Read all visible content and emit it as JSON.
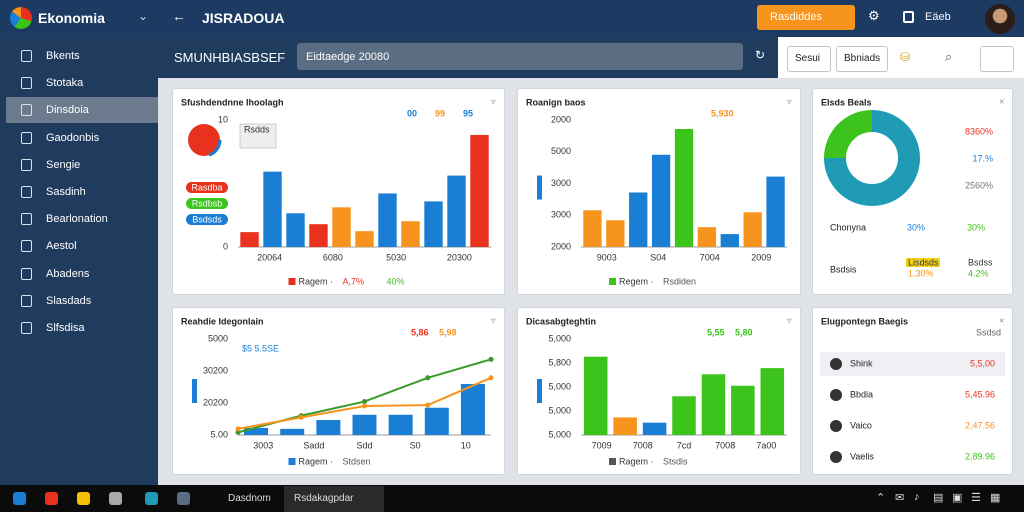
{
  "topbar": {
    "brand": "Ekonomia",
    "title": "JISRADOUA",
    "button": "Rasdiddes",
    "user": "Eäeb"
  },
  "sidebar": {
    "selected": 2,
    "items": [
      "Bkents",
      "Stotaka",
      "Dinsdoia",
      "Gaodonbis",
      "Sengie",
      "Sasdinh",
      "Bearlonation",
      "Aestol",
      "Abadens",
      "Slasdads",
      "Slfsdisa"
    ]
  },
  "header": {
    "title": "SMUNHBIASBSEF",
    "search": "Eidtaedge   20080",
    "buttons": [
      "Sesui",
      "Bbniads"
    ]
  },
  "panels": [
    {
      "kind": "bar",
      "title": "Sfushdendnne Ihoolagh",
      "badges": [
        {
          "text": "00",
          "color": "#1a7fd4"
        },
        {
          "text": "99",
          "color": "#f7941d"
        },
        {
          "text": "95",
          "color": "#1a7fd4"
        }
      ],
      "tag_title": "Rsdds",
      "tags": [
        {
          "text": "Rasdba",
          "color": "#e8321e"
        },
        {
          "text": "Rsdbsb",
          "color": "#3cc31c"
        },
        {
          "text": "Bsdsds",
          "color": "#1a7fd4"
        }
      ],
      "ylabels": [
        "10",
        "0"
      ],
      "xlabels": [
        "20064",
        "6080",
        "5030",
        "20300"
      ],
      "legend": [
        {
          "text": "Ragem ·",
          "color": "#e8321e"
        },
        {
          "text": "A,7%",
          "color": "#e8321e"
        },
        {
          "text": "40%",
          "color": "#3cc31c"
        }
      ],
      "ylim": [
        0,
        120
      ],
      "bars": [
        {
          "value": 15,
          "color": "#e8321e"
        },
        {
          "value": 76,
          "color": "#1a7fd4"
        },
        {
          "value": 34,
          "color": "#1a7fd4"
        },
        {
          "value": 23,
          "color": "#e8321e"
        },
        {
          "value": 40,
          "color": "#f7941d"
        },
        {
          "value": 16,
          "color": "#f7941d"
        },
        {
          "value": 54,
          "color": "#1a7fd4"
        },
        {
          "value": 26,
          "color": "#f7941d"
        },
        {
          "value": 46,
          "color": "#1a7fd4"
        },
        {
          "value": 72,
          "color": "#1a7fd4"
        },
        {
          "value": 113,
          "color": "#e8321e"
        }
      ]
    },
    {
      "kind": "bar",
      "title": "Roanign baos",
      "badges": [
        {
          "text": "5,930",
          "color": "#f7941d"
        }
      ],
      "ylabels": [
        "2000",
        "5000",
        "3000",
        "3000",
        "2000"
      ],
      "xlabels": [
        "9003",
        "S04",
        "7004",
        "2009"
      ],
      "legend": [
        {
          "text": "Regem ·",
          "color": "#3cc31c"
        },
        {
          "text": "Rsdiden",
          "color": "#555555"
        }
      ],
      "ylim": [
        0,
        120
      ],
      "bars": [
        {
          "value": 37,
          "color": "#f7941d"
        },
        {
          "value": 27,
          "color": "#f7941d"
        },
        {
          "value": 55,
          "color": "#1a7fd4"
        },
        {
          "value": 93,
          "color": "#1a7fd4"
        },
        {
          "value": 119,
          "color": "#3cc31c"
        },
        {
          "value": 20,
          "color": "#f7941d"
        },
        {
          "value": 13,
          "color": "#1a7fd4"
        },
        {
          "value": 35,
          "color": "#f7941d"
        },
        {
          "value": 71,
          "color": "#1a7fd4"
        }
      ]
    },
    {
      "kind": "donut",
      "title": "Elsds Beals",
      "segments": [
        {
          "value": 75,
          "color": "#1f9bb5"
        },
        {
          "value": 25,
          "color": "#3cc31c"
        }
      ],
      "side": [
        {
          "text": "8360%",
          "color": "#e8321e"
        },
        {
          "text": "17.%",
          "color": "#1a7fd4"
        },
        {
          "text": "2560%",
          "color": "#777777"
        }
      ],
      "row1": {
        "label": "Chonyna",
        "a": "30%",
        "b": "30%"
      },
      "row2": {
        "label": "Bsdsis",
        "tag": "Lisdsds",
        "a": "1.30%",
        "tag2": "Bsdss",
        "b": "4.2%"
      }
    },
    {
      "kind": "bar",
      "title": "Reahdie Idegonlain",
      "badges": [
        {
          "text": "5,86",
          "color": "#e8321e"
        },
        {
          "text": "5,98",
          "color": "#f7941d"
        }
      ],
      "note": "$5 5.5SE",
      "ylabels": [
        "5000",
        "30200",
        "20200",
        "5.00"
      ],
      "xlabels": [
        "3003",
        "Sadd",
        "Sdd",
        "S0",
        "10"
      ],
      "legend": [
        {
          "text": "Ragem ·",
          "color": "#1a7fd4"
        },
        {
          "text": "Stdsen",
          "color": "#555555"
        }
      ],
      "ylim": [
        0,
        100
      ],
      "bars": [
        {
          "value": 8,
          "color": "#1a7fd4"
        },
        {
          "value": 7,
          "color": "#1a7fd4"
        },
        {
          "value": 17,
          "color": "#1a7fd4"
        },
        {
          "value": 23,
          "color": "#1a7fd4"
        },
        {
          "value": 23,
          "color": "#1a7fd4"
        },
        {
          "value": 31,
          "color": "#1a7fd4"
        },
        {
          "value": 58,
          "color": "#1a7fd4"
        }
      ],
      "lines": [
        {
          "color": "#3a9a2a",
          "values": [
            3,
            22,
            38,
            65,
            86
          ]
        },
        {
          "color": "#f7941d",
          "values": [
            7,
            20,
            33,
            34,
            65
          ]
        }
      ]
    },
    {
      "kind": "bar",
      "title": "Dicasabgteghtin",
      "badges": [
        {
          "text": "5,55",
          "color": "#3cc31c"
        },
        {
          "text": "5,80",
          "color": "#3cc31c"
        }
      ],
      "ylabels": [
        "5,000",
        "5,800",
        "5,000",
        "5,000",
        "5,000"
      ],
      "xlabels": [
        "7009",
        "7008",
        "7cd",
        "7008",
        "7a00"
      ],
      "legend": [
        {
          "text": "Ragem ·",
          "color": "#555555"
        },
        {
          "text": "Stsdis",
          "color": "#555555"
        }
      ],
      "ylim": [
        0,
        100
      ],
      "bars": [
        {
          "value": 89,
          "color": "#3cc31c"
        },
        {
          "value": 20,
          "color": "#f7941d"
        },
        {
          "value": 14,
          "color": "#1a7fd4"
        },
        {
          "value": 44,
          "color": "#3cc31c"
        },
        {
          "value": 69,
          "color": "#3cc31c"
        },
        {
          "value": 56,
          "color": "#3cc31c"
        },
        {
          "value": 76,
          "color": "#3cc31c"
        }
      ]
    },
    {
      "kind": "list",
      "title": "Elugpontegn Baegis",
      "subtitle": "Ssdsd",
      "rows": [
        {
          "name": "Shink",
          "value": "5,5,00",
          "color": "#e8321e"
        },
        {
          "name": "Bbdia",
          "value": "5,45.96",
          "color": "#e8321e"
        },
        {
          "name": "Vaico",
          "value": "2,47.56",
          "color": "#f7941d"
        },
        {
          "name": "Vaelis",
          "value": "2,89.96",
          "color": "#3cc31c"
        }
      ]
    }
  ],
  "taskbar": {
    "apps": [
      "Dasdnom",
      "Rsdakagpdar"
    ]
  }
}
